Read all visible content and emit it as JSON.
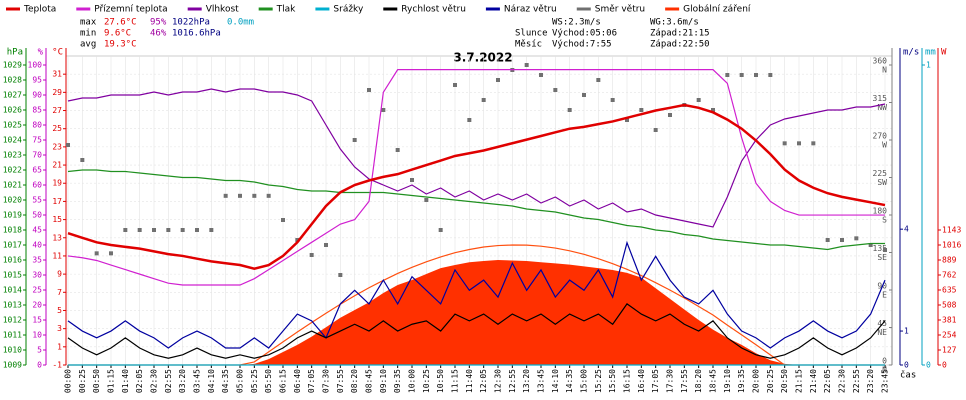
{
  "chart_data": {
    "type": "line",
    "title": "3.7.2022",
    "x_label": "čas",
    "categories": [
      "00:00",
      "00:25",
      "00:50",
      "01:15",
      "01:40",
      "02:05",
      "02:30",
      "02:55",
      "03:20",
      "03:45",
      "04:10",
      "04:35",
      "05:00",
      "05:25",
      "05:50",
      "06:15",
      "06:40",
      "07:05",
      "07:30",
      "07:55",
      "08:20",
      "08:45",
      "09:10",
      "09:35",
      "10:00",
      "10:25",
      "10:50",
      "11:15",
      "11:40",
      "12:05",
      "12:30",
      "12:55",
      "13:20",
      "13:45",
      "14:10",
      "14:35",
      "15:00",
      "15:25",
      "15:50",
      "16:15",
      "16:40",
      "17:05",
      "17:30",
      "17:55",
      "18:20",
      "18:45",
      "19:10",
      "19:35",
      "20:00",
      "20:25",
      "20:50",
      "21:15",
      "21:40",
      "22:05",
      "22:30",
      "22:55",
      "23:20",
      "23:45"
    ],
    "stats": [
      [
        "max",
        "27.6°C",
        "95%",
        "1022hPa",
        "0.0mm"
      ],
      [
        "min",
        "9.6°C",
        "46%",
        "1016.6hPa"
      ],
      [
        "avg",
        "19.3°C"
      ]
    ],
    "info": [
      [
        "WS:2.3m/s",
        "WG:3.6m/s"
      ],
      [
        "Slunce",
        "Východ:05:06",
        "Západ:21:15"
      ],
      [
        "Měsíc",
        "Východ:7:55",
        "Západ:22:50"
      ]
    ],
    "axes": [
      {
        "name": "hPa",
        "color": "#008000",
        "lim": [
          1009,
          1029.6
        ],
        "ticks": [
          1009,
          1010,
          1011,
          1012,
          1013,
          1014,
          1015,
          1016,
          1017,
          1018,
          1019,
          1020,
          1021,
          1022,
          1023,
          1024,
          1025,
          1026,
          1027,
          1028,
          1029
        ]
      },
      {
        "name": "%",
        "color": "#c000c0",
        "lim": [
          0,
          103
        ],
        "ticks": [
          0,
          5,
          10,
          15,
          20,
          25,
          30,
          35,
          40,
          45,
          50,
          55,
          60,
          65,
          70,
          75,
          80,
          85,
          90,
          95,
          100
        ]
      },
      {
        "name": "°C",
        "color": "#e00000",
        "lim": [
          -1,
          33
        ],
        "ticks": [
          -1,
          1,
          3,
          5,
          7,
          9,
          11,
          13,
          15,
          17,
          19,
          21,
          23,
          25,
          27,
          29,
          31
        ]
      },
      {
        "name": "°",
        "color": "#808080",
        "lim": [
          0,
          370.8
        ],
        "ticks": [
          {
            "value": 0,
            "label": "0",
            "dir": "N"
          },
          {
            "value": 45,
            "label": "45",
            "dir": "NE"
          },
          {
            "value": 90,
            "label": "90",
            "dir": "E"
          },
          {
            "value": 135,
            "label": "135",
            "dir": "SE"
          },
          {
            "value": 180,
            "label": "180",
            "dir": "S"
          },
          {
            "value": 225,
            "label": "225",
            "dir": "SW"
          },
          {
            "value": 270,
            "label": "270",
            "dir": "W"
          },
          {
            "value": 315,
            "label": "315",
            "dir": "NW"
          },
          {
            "value": 360,
            "label": "360",
            "dir": "N"
          }
        ]
      },
      {
        "name": "m/s",
        "color": "#000080",
        "lim": [
          0,
          9.1
        ],
        "ticks": [
          0,
          1,
          4
        ]
      },
      {
        "name": "mm",
        "color": "#00a0c0",
        "lim": [
          0,
          1.03
        ],
        "ticks": [
          0,
          1
        ]
      },
      {
        "name": "W",
        "color": "#e00000",
        "lim": [
          0,
          2616
        ],
        "ticks": [
          0,
          127,
          254,
          381,
          508,
          635,
          762,
          889,
          1016,
          1143
        ]
      }
    ],
    "series": [
      {
        "name": "Globální záření",
        "color": "#ff3000",
        "axis": "W",
        "kind": "area",
        "values": [
          0,
          0,
          0,
          0,
          0,
          0,
          0,
          0,
          0,
          0,
          0,
          0,
          0,
          10,
          50,
          110,
          170,
          240,
          320,
          400,
          466,
          530,
          610,
          677,
          720,
          770,
          820,
          847,
          870,
          880,
          889,
          885,
          880,
          870,
          860,
          850,
          835,
          820,
          804,
          780,
          740,
          650,
          560,
          470,
          381,
          300,
          230,
          170,
          100,
          40,
          10,
          0,
          0,
          0,
          0,
          0,
          0,
          0
        ]
      },
      {
        "color": "#ff5010",
        "axis": "W",
        "kind": "line",
        "values": [
          0,
          0,
          0,
          0,
          0,
          0,
          0,
          0,
          0,
          0,
          0,
          0,
          0,
          26,
          111,
          196,
          279,
          360,
          438,
          514,
          586,
          654,
          716,
          775,
          827,
          874,
          915,
          951,
          978,
          999,
          1011,
          1016,
          1015,
          1006,
          990,
          967,
          937,
          900,
          858,
          810,
          757,
          697,
          634,
          567,
          495,
          423,
          338,
          255,
          171,
          86,
          0,
          0,
          0,
          0,
          0,
          0,
          0,
          0
        ]
      },
      {
        "name": "Srážky",
        "color": "#00b0d0",
        "axis": "mm",
        "kind": "line",
        "values": [
          0,
          0,
          0,
          0,
          0,
          0,
          0,
          0,
          0,
          0,
          0,
          0,
          0,
          0,
          0,
          0,
          0,
          0,
          0,
          0,
          0,
          0,
          0,
          0,
          0,
          0,
          0,
          0,
          0,
          0,
          0,
          0,
          0,
          0,
          0,
          0,
          0,
          0,
          0,
          0,
          0,
          0,
          0,
          0,
          0,
          0,
          0,
          0,
          0,
          0,
          0,
          0,
          0,
          0,
          0,
          0,
          0,
          0
        ]
      },
      {
        "name": "Náraz větru",
        "color": "#0000a0",
        "axis": "m/s",
        "kind": "line",
        "values": [
          1.3,
          1.0,
          0.8,
          1.0,
          1.3,
          1.0,
          0.8,
          0.5,
          0.8,
          1.0,
          0.8,
          0.5,
          0.5,
          0.8,
          0.5,
          1.0,
          1.5,
          1.3,
          0.8,
          1.8,
          2.2,
          1.8,
          2.5,
          1.8,
          2.6,
          2.2,
          1.8,
          2.8,
          2.2,
          2.5,
          2.0,
          3.0,
          2.2,
          2.8,
          2.0,
          2.5,
          2.2,
          2.8,
          2.0,
          3.6,
          2.5,
          3.2,
          2.5,
          2.0,
          1.8,
          2.2,
          1.5,
          1.0,
          0.8,
          0.5,
          0.8,
          1.0,
          1.3,
          1.0,
          0.8,
          1.0,
          1.5,
          2.5
        ]
      },
      {
        "name": "Rychlost větru",
        "color": "#000000",
        "axis": "m/s",
        "kind": "line",
        "values": [
          0.8,
          0.5,
          0.3,
          0.5,
          0.8,
          0.5,
          0.3,
          0.2,
          0.3,
          0.5,
          0.3,
          0.2,
          0.3,
          0.2,
          0.3,
          0.5,
          0.8,
          1.0,
          0.8,
          1.0,
          1.2,
          1.0,
          1.3,
          1.0,
          1.2,
          1.3,
          1.0,
          1.5,
          1.3,
          1.5,
          1.2,
          1.5,
          1.3,
          1.5,
          1.2,
          1.5,
          1.3,
          1.5,
          1.2,
          1.8,
          1.5,
          1.3,
          1.5,
          1.2,
          1.0,
          1.3,
          0.8,
          0.5,
          0.3,
          0.2,
          0.3,
          0.5,
          0.8,
          0.5,
          0.3,
          0.5,
          0.8,
          1.3
        ]
      },
      {
        "name": "Směr větru",
        "color": "#707070",
        "axis": "°",
        "kind": "scatter",
        "values": [
          264,
          246,
          134,
          134,
          162,
          162,
          162,
          162,
          162,
          162,
          162,
          203,
          203,
          203,
          203,
          174,
          150,
          132,
          144,
          108,
          270,
          330,
          306,
          258,
          222,
          198,
          162,
          336,
          294,
          318,
          342,
          354,
          360,
          348,
          330,
          306,
          324,
          342,
          318,
          294,
          306,
          282,
          300,
          312,
          318,
          306,
          348,
          348,
          348,
          348,
          266,
          266,
          266,
          150,
          150,
          152,
          144,
          138
        ]
      },
      {
        "name": "Tlak",
        "color": "#209020",
        "axis": "hPa",
        "kind": "line",
        "values": [
          1021.9,
          1022,
          1022,
          1021.9,
          1021.9,
          1021.8,
          1021.7,
          1021.6,
          1021.5,
          1021.5,
          1021.4,
          1021.3,
          1021.3,
          1021.2,
          1021,
          1020.9,
          1020.7,
          1020.6,
          1020.6,
          1020.5,
          1020.5,
          1020.5,
          1020.5,
          1020.4,
          1020.3,
          1020.2,
          1020.1,
          1020,
          1019.9,
          1019.8,
          1019.7,
          1019.6,
          1019.4,
          1019.3,
          1019.2,
          1019,
          1018.8,
          1018.7,
          1018.5,
          1018.3,
          1018.2,
          1018,
          1017.9,
          1017.7,
          1017.6,
          1017.4,
          1017.3,
          1017.2,
          1017.1,
          1017,
          1017,
          1016.9,
          1016.8,
          1016.7,
          1016.9,
          1017,
          1017.1,
          1017.1
        ]
      },
      {
        "name": "Vlhkost",
        "color": "#8000a0",
        "axis": "%",
        "kind": "line",
        "values": [
          88,
          89,
          89,
          90,
          90,
          90,
          91,
          90,
          91,
          91,
          92,
          91,
          92,
          92,
          91,
          91,
          90,
          88,
          80,
          72,
          66,
          62,
          60,
          58,
          60,
          57,
          59,
          56,
          58,
          55,
          57,
          55,
          57,
          54,
          56,
          53,
          55,
          52,
          54,
          51,
          52,
          50,
          49,
          48,
          47,
          46,
          56,
          68,
          75,
          80,
          82,
          83,
          84,
          85,
          85,
          86,
          86,
          87
        ]
      },
      {
        "name": "Přízemní teplota",
        "color": "#d020d0",
        "axis": "°C",
        "kind": "line",
        "values": [
          11,
          10.8,
          10.5,
          10,
          9.5,
          9,
          8.5,
          8,
          7.8,
          7.8,
          7.8,
          7.8,
          7.8,
          8.5,
          9.5,
          10.5,
          11.5,
          12.5,
          13.5,
          14.5,
          15,
          17,
          29,
          31.5,
          31.5,
          31.5,
          31.5,
          31.5,
          31.5,
          31.5,
          31.5,
          31.5,
          31.5,
          31.5,
          31.5,
          31.5,
          31.5,
          31.5,
          31.5,
          31.5,
          31.5,
          31.5,
          31.5,
          31.5,
          31.5,
          31.5,
          30,
          24,
          19,
          17,
          16,
          15.5,
          15.5,
          15.5,
          15.5,
          15.5,
          15.5,
          15.5
        ]
      },
      {
        "name": "Teplota",
        "color": "#e00000",
        "axis": "°C",
        "kind": "line",
        "values": [
          13.5,
          13,
          12.5,
          12.2,
          12,
          11.8,
          11.5,
          11.2,
          11,
          10.7,
          10.4,
          10.2,
          10,
          9.6,
          10,
          11,
          12.5,
          14.5,
          16.5,
          18,
          18.8,
          19.3,
          19.7,
          20,
          20.5,
          21,
          21.5,
          22,
          22.3,
          22.6,
          23,
          23.4,
          23.8,
          24.2,
          24.6,
          25,
          25.2,
          25.5,
          25.8,
          26.2,
          26.6,
          27,
          27.3,
          27.6,
          27.3,
          26.8,
          26,
          25,
          23.7,
          22.2,
          20.5,
          19.3,
          18.5,
          17.9,
          17.5,
          17.2,
          16.9,
          16.6
        ]
      }
    ],
    "legend_order": [
      9,
      8,
      7,
      6,
      2,
      4,
      3,
      5,
      0
    ],
    "grid": true
  }
}
